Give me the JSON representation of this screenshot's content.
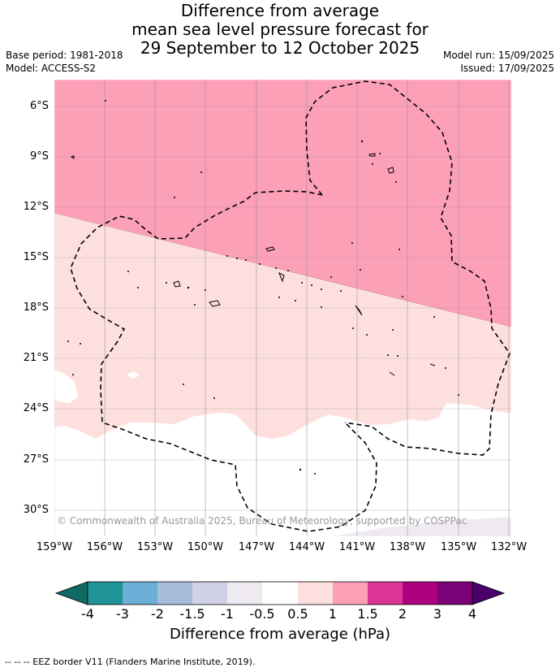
{
  "title_lines": [
    "Difference from average",
    "mean sea level pressure forecast for",
    "29 September to 12 October 2025"
  ],
  "meta": {
    "base_period": "Base period: 1981-2018",
    "model": "Model: ACCESS-S2",
    "model_run": "Model run: 15/09/2025",
    "issued": "Issued: 17/09/2025"
  },
  "map": {
    "lat_ticks": [
      "6°S",
      "9°S",
      "12°S",
      "15°S",
      "18°S",
      "21°S",
      "24°S",
      "27°S",
      "30°S"
    ],
    "lon_ticks": [
      "159°W",
      "156°W",
      "153°W",
      "150°W",
      "147°W",
      "144°W",
      "141°W",
      "138°W",
      "135°W",
      "132°W"
    ],
    "copyright": "© Commonwealth of Australia 2025, Bureau of Meteorology, supported by COSPPac",
    "fill_colors": {
      "1_to_1.5": "#fca0b8",
      "0.5_to_1": "#fde0dd",
      "-0.5_to_0.5": "#ffffff",
      "-1_to_-0.5": "#efe9f1"
    }
  },
  "colorbar": {
    "labels": [
      "-4",
      "-3",
      "-2",
      "-1.5",
      "-1",
      "-0.5",
      "0.5",
      "1",
      "1.5",
      "2",
      "3",
      "4"
    ],
    "colors": [
      "#0f6a63",
      "#1e9398",
      "#6baed6",
      "#a6bddb",
      "#d0d1e6",
      "#efe9f1",
      "#ffffff",
      "#fde0dd",
      "#fca0b8",
      "#dd3497",
      "#ae017e",
      "#7a0177",
      "#49006a"
    ],
    "title": "Difference from average (hPa)"
  },
  "footer": "--  --  -- EEZ border V11 (Flanders Marine Institute, 2019)."
}
